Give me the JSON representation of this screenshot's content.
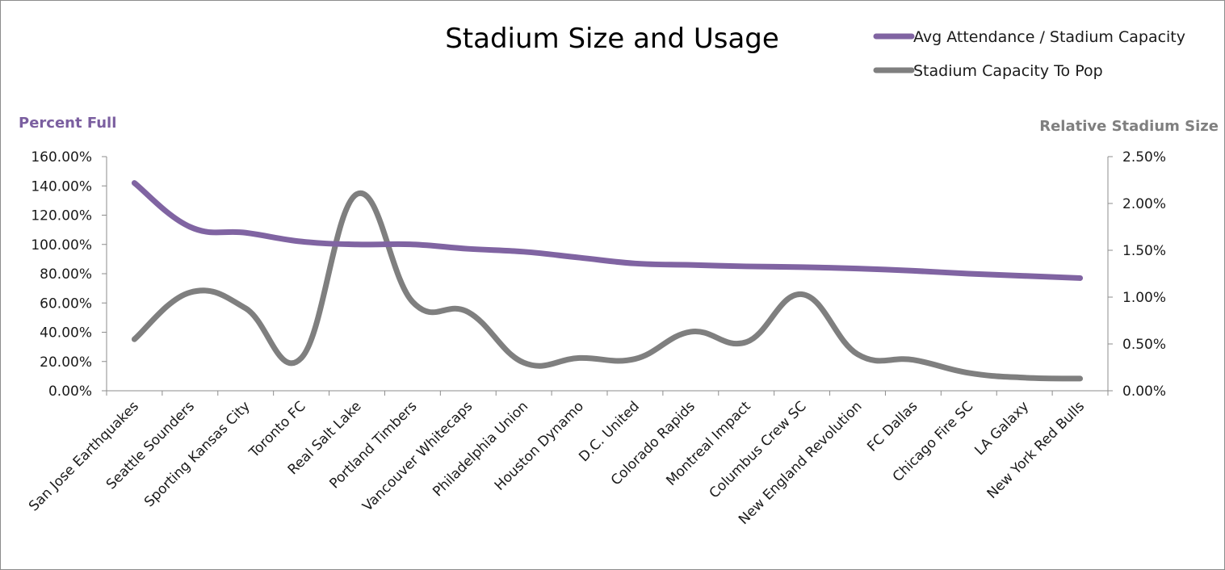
{
  "chart_data": {
    "type": "line",
    "title": "Stadium Size and Usage",
    "categories": [
      "San Jose Earthquakes",
      "Seattle Sounders",
      "Sporting Kansas City",
      "Toronto FC",
      "Real Salt Lake",
      "Portland Timbers",
      "Vancouver Whitecaps",
      "Philadelphia Union",
      "Houston Dynamo",
      "D.C. United",
      "Colorado Rapids",
      "Montreal Impact",
      "Columbus Crew SC",
      "New England Revolution",
      "FC Dallas",
      "Chicago Fire SC",
      "LA Galaxy",
      "New York Red Bulls"
    ],
    "series": [
      {
        "name": "Avg Attendance / Stadium Capacity",
        "axis": "left",
        "color": "#8064a2",
        "values": [
          1.42,
          1.12,
          1.08,
          1.02,
          1.0,
          1.0,
          0.97,
          0.95,
          0.91,
          0.87,
          0.86,
          0.85,
          0.845,
          0.835,
          0.82,
          0.8,
          0.785,
          0.77
        ]
      },
      {
        "name": "Stadium Capacity To Pop",
        "axis": "right",
        "color": "#7f7f7f",
        "values": [
          0.0055,
          0.0105,
          0.0088,
          0.0035,
          0.021,
          0.0095,
          0.0084,
          0.003,
          0.0035,
          0.0034,
          0.0063,
          0.0052,
          0.0103,
          0.0039,
          0.0033,
          0.0019,
          0.0014,
          0.0013
        ]
      }
    ],
    "ylabel_left": "Percent Full",
    "ylabel_right": "Relative Stadium Size",
    "ylim_left": [
      0,
      1.6
    ],
    "ylim_right": [
      0,
      0.025
    ],
    "yticks_left": [
      "0.00%",
      "20.00%",
      "40.00%",
      "60.00%",
      "80.00%",
      "100.00%",
      "120.00%",
      "140.00%",
      "160.00%"
    ],
    "yticks_right": [
      "0.00%",
      "0.50%",
      "1.00%",
      "1.50%",
      "2.00%",
      "2.50%"
    ],
    "legend_position": "top-right",
    "grid": false,
    "left_axis_color": "#8064a2",
    "right_axis_color": "#7f7f7f"
  }
}
